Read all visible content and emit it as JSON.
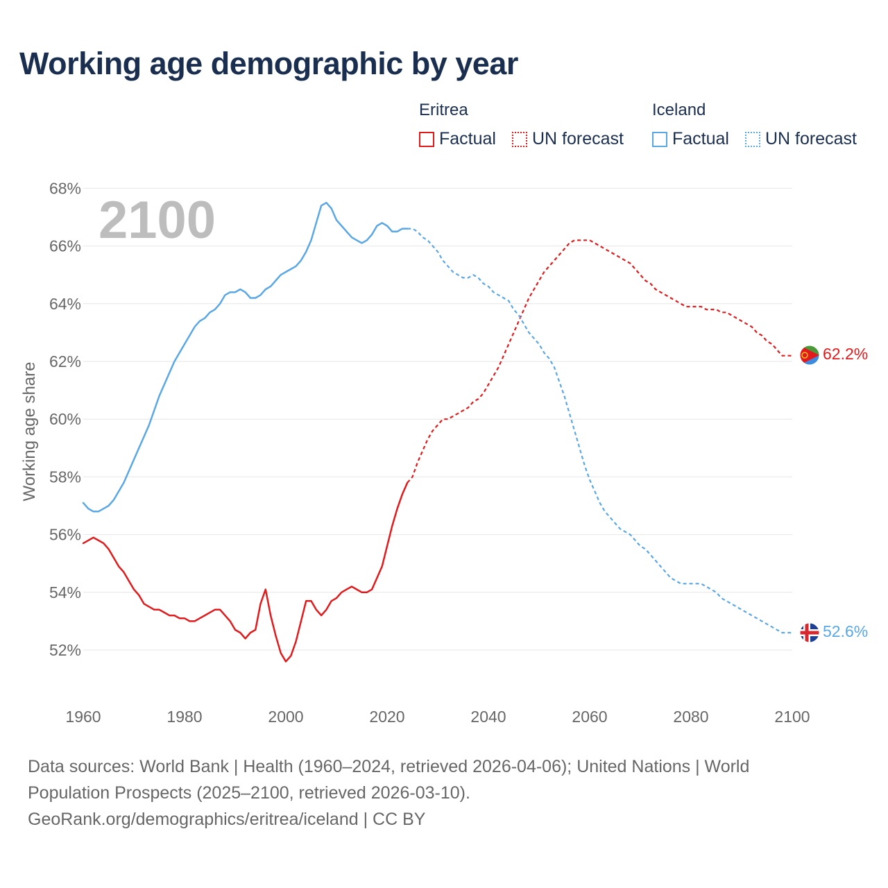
{
  "title": "Working age demographic by year",
  "legend": {
    "groups": [
      {
        "name": "Eritrea",
        "factual_label": "Factual",
        "forecast_label": "UN forecast"
      },
      {
        "name": "Iceland",
        "factual_label": "Factual",
        "forecast_label": "UN forecast"
      }
    ]
  },
  "footer": {
    "line1": "Data sources: World Bank | Health (1960–2024, retrieved 2026-04-06); United Nations | World",
    "line2": "Population Prospects (2025–2100, retrieved 2026-03-10).",
    "line3": "GeoRank.org/demographics/eritrea/iceland | CC BY"
  },
  "colors": {
    "eritrea": "#e31a1c",
    "iceland": "#5aa7e6",
    "grid": "#e6e6e6",
    "title": "#1a2e4f"
  },
  "chart_data": {
    "type": "line",
    "title": "Working age demographic by year",
    "ylabel": "Working age share",
    "xlabel": "",
    "year_watermark": "2100",
    "xlim": [
      1960,
      2100
    ],
    "ylim": [
      50.5,
      68
    ],
    "x_ticks": [
      1960,
      1980,
      2000,
      2020,
      2040,
      2060,
      2080,
      2100
    ],
    "x_tick_labels": [
      "1960",
      "1980",
      "2000",
      "2020",
      "2040",
      "2060",
      "2080",
      "2100"
    ],
    "y_ticks": [
      52,
      54,
      56,
      58,
      60,
      62,
      64,
      66,
      68
    ],
    "y_tick_labels": [
      "52%",
      "54%",
      "56%",
      "58%",
      "60%",
      "62%",
      "64%",
      "66%",
      "68%"
    ],
    "grid": true,
    "series": [
      {
        "name": "Eritrea",
        "factual": {
          "x": [
            1960,
            1961,
            1962,
            1963,
            1964,
            1965,
            1966,
            1967,
            1968,
            1969,
            1970,
            1971,
            1972,
            1973,
            1974,
            1975,
            1976,
            1977,
            1978,
            1979,
            1980,
            1981,
            1982,
            1983,
            1984,
            1985,
            1986,
            1987,
            1988,
            1989,
            1990,
            1991,
            1992,
            1993,
            1994,
            1995,
            1996,
            1997,
            1998,
            1999,
            2000,
            2001,
            2002,
            2003,
            2004,
            2005,
            2006,
            2007,
            2008,
            2009,
            2010,
            2011,
            2012,
            2013,
            2014,
            2015,
            2016,
            2017,
            2018,
            2019,
            2020,
            2021,
            2022,
            2023,
            2024
          ],
          "y": [
            55.7,
            55.8,
            55.9,
            55.8,
            55.7,
            55.5,
            55.2,
            54.9,
            54.7,
            54.4,
            54.1,
            53.9,
            53.6,
            53.5,
            53.4,
            53.4,
            53.3,
            53.2,
            53.2,
            53.1,
            53.1,
            53.0,
            53.0,
            53.1,
            53.2,
            53.3,
            53.4,
            53.4,
            53.2,
            53.0,
            52.7,
            52.6,
            52.4,
            52.6,
            52.7,
            53.6,
            54.1,
            53.2,
            52.5,
            51.9,
            51.6,
            51.8,
            52.3,
            53.0,
            53.7,
            53.7,
            53.4,
            53.2,
            53.4,
            53.7,
            53.8,
            54.0,
            54.1,
            54.2,
            54.1,
            54.0,
            54.0,
            54.1,
            54.5,
            54.9,
            55.6,
            56.3,
            56.9,
            57.4,
            57.8
          ]
        },
        "forecast": {
          "x": [
            2024,
            2025,
            2026,
            2027,
            2028,
            2029,
            2030,
            2031,
            2032,
            2033,
            2034,
            2035,
            2036,
            2037,
            2038,
            2039,
            2040,
            2041,
            2042,
            2043,
            2044,
            2045,
            2046,
            2047,
            2048,
            2049,
            2050,
            2051,
            2052,
            2053,
            2054,
            2055,
            2056,
            2057,
            2058,
            2059,
            2060,
            2061,
            2062,
            2063,
            2064,
            2065,
            2066,
            2067,
            2068,
            2069,
            2070,
            2071,
            2072,
            2073,
            2074,
            2075,
            2076,
            2077,
            2078,
            2079,
            2080,
            2081,
            2082,
            2083,
            2084,
            2085,
            2086,
            2087,
            2088,
            2089,
            2090,
            2091,
            2092,
            2093,
            2094,
            2095,
            2096,
            2097,
            2098,
            2099,
            2100
          ],
          "y": [
            57.8,
            58.0,
            58.5,
            58.9,
            59.3,
            59.6,
            59.8,
            60.0,
            60.0,
            60.1,
            60.2,
            60.3,
            60.4,
            60.6,
            60.7,
            60.9,
            61.2,
            61.5,
            61.8,
            62.2,
            62.6,
            63.0,
            63.4,
            63.8,
            64.2,
            64.5,
            64.8,
            65.1,
            65.3,
            65.5,
            65.7,
            65.9,
            66.1,
            66.2,
            66.2,
            66.2,
            66.2,
            66.1,
            66.0,
            65.9,
            65.8,
            65.7,
            65.6,
            65.5,
            65.4,
            65.2,
            65.0,
            64.8,
            64.7,
            64.5,
            64.4,
            64.3,
            64.2,
            64.1,
            64.0,
            63.9,
            63.9,
            63.9,
            63.9,
            63.8,
            63.8,
            63.8,
            63.7,
            63.7,
            63.6,
            63.5,
            63.4,
            63.3,
            63.2,
            63.0,
            62.9,
            62.7,
            62.6,
            62.4,
            62.2,
            62.2,
            62.2
          ]
        },
        "end_value": "62.2%"
      },
      {
        "name": "Iceland",
        "factual": {
          "x": [
            1960,
            1961,
            1962,
            1963,
            1964,
            1965,
            1966,
            1967,
            1968,
            1969,
            1970,
            1971,
            1972,
            1973,
            1974,
            1975,
            1976,
            1977,
            1978,
            1979,
            1980,
            1981,
            1982,
            1983,
            1984,
            1985,
            1986,
            1987,
            1988,
            1989,
            1990,
            1991,
            1992,
            1993,
            1994,
            1995,
            1996,
            1997,
            1998,
            1999,
            2000,
            2001,
            2002,
            2003,
            2004,
            2005,
            2006,
            2007,
            2008,
            2009,
            2010,
            2011,
            2012,
            2013,
            2014,
            2015,
            2016,
            2017,
            2018,
            2019,
            2020,
            2021,
            2022,
            2023,
            2024
          ],
          "y": [
            57.1,
            56.9,
            56.8,
            56.8,
            56.9,
            57.0,
            57.2,
            57.5,
            57.8,
            58.2,
            58.6,
            59.0,
            59.4,
            59.8,
            60.3,
            60.8,
            61.2,
            61.6,
            62.0,
            62.3,
            62.6,
            62.9,
            63.2,
            63.4,
            63.5,
            63.7,
            63.8,
            64.0,
            64.3,
            64.4,
            64.4,
            64.5,
            64.4,
            64.2,
            64.2,
            64.3,
            64.5,
            64.6,
            64.8,
            65.0,
            65.1,
            65.2,
            65.3,
            65.5,
            65.8,
            66.2,
            66.8,
            67.4,
            67.5,
            67.3,
            66.9,
            66.7,
            66.5,
            66.3,
            66.2,
            66.1,
            66.2,
            66.4,
            66.7,
            66.8,
            66.7,
            66.5,
            66.5,
            66.6,
            66.6
          ]
        },
        "forecast": {
          "x": [
            2024,
            2025,
            2026,
            2027,
            2028,
            2029,
            2030,
            2031,
            2032,
            2033,
            2034,
            2035,
            2036,
            2037,
            2038,
            2039,
            2040,
            2041,
            2042,
            2043,
            2044,
            2045,
            2046,
            2047,
            2048,
            2049,
            2050,
            2051,
            2052,
            2053,
            2054,
            2055,
            2056,
            2057,
            2058,
            2059,
            2060,
            2061,
            2062,
            2063,
            2064,
            2065,
            2066,
            2067,
            2068,
            2069,
            2070,
            2071,
            2072,
            2073,
            2074,
            2075,
            2076,
            2077,
            2078,
            2079,
            2080,
            2081,
            2082,
            2083,
            2084,
            2085,
            2086,
            2087,
            2088,
            2089,
            2090,
            2091,
            2092,
            2093,
            2094,
            2095,
            2096,
            2097,
            2098,
            2099,
            2100
          ],
          "y": [
            66.6,
            66.6,
            66.5,
            66.3,
            66.2,
            66.0,
            65.8,
            65.5,
            65.3,
            65.1,
            65.0,
            64.9,
            64.9,
            65.0,
            64.9,
            64.7,
            64.6,
            64.4,
            64.3,
            64.2,
            64.1,
            63.8,
            63.6,
            63.3,
            63.0,
            62.8,
            62.6,
            62.3,
            62.1,
            61.8,
            61.3,
            60.8,
            60.2,
            59.6,
            59.0,
            58.4,
            57.9,
            57.5,
            57.1,
            56.8,
            56.6,
            56.4,
            56.2,
            56.1,
            56.0,
            55.8,
            55.6,
            55.5,
            55.3,
            55.1,
            54.9,
            54.7,
            54.5,
            54.4,
            54.3,
            54.3,
            54.3,
            54.3,
            54.3,
            54.2,
            54.1,
            54.0,
            53.8,
            53.7,
            53.6,
            53.5,
            53.4,
            53.3,
            53.2,
            53.1,
            53.0,
            52.9,
            52.8,
            52.7,
            52.6,
            52.6,
            52.6
          ]
        },
        "end_value": "52.6%"
      }
    ]
  }
}
